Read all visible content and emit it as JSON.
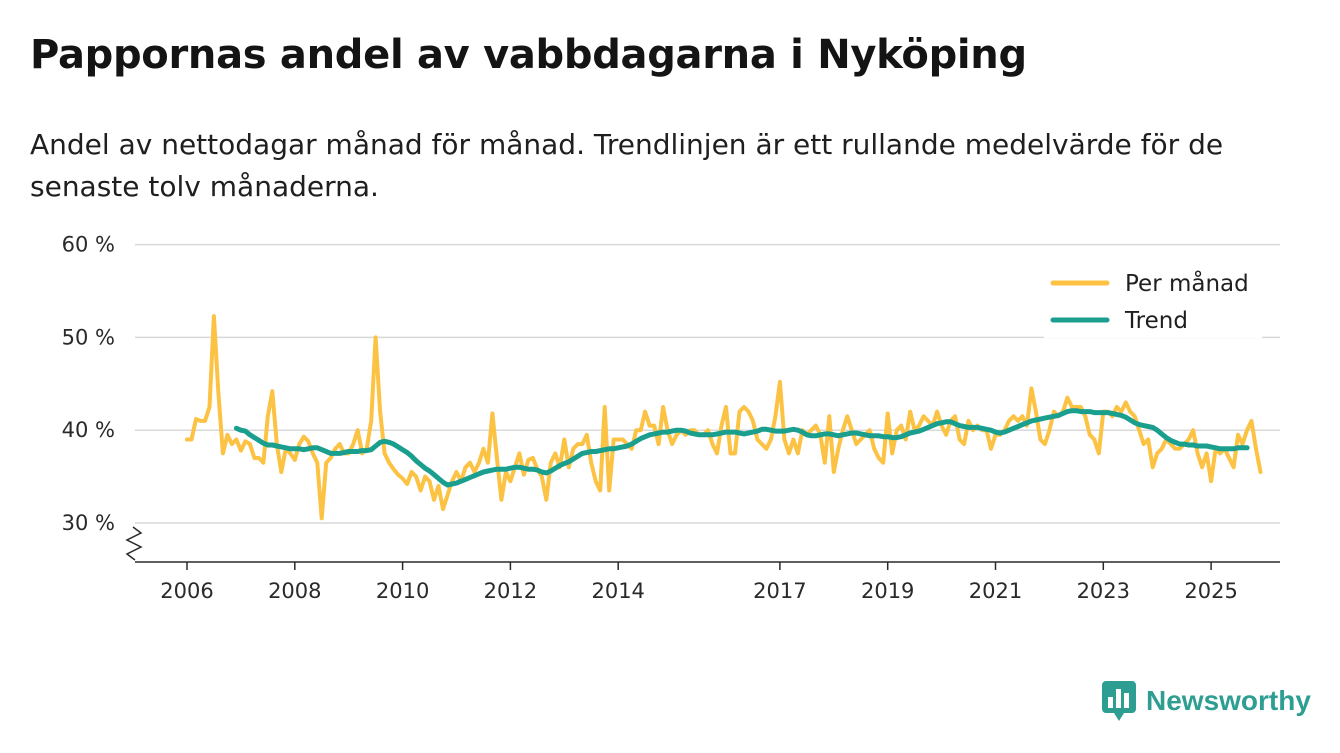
{
  "title": "Pappornas andel av vabbdagarna i Nyköping",
  "subtitle": "Andel av nettodagar månad för månad. Trendlinjen är ett rullande medelvärde för de senaste tolv månaderna.",
  "brand": {
    "name": "Newsworthy",
    "color": "#2e9e93"
  },
  "chart_data": {
    "type": "line",
    "ylim": [
      30,
      60
    ],
    "y_ticks": [
      {
        "value": 30,
        "label": "30 %"
      },
      {
        "value": 40,
        "label": "40 %"
      },
      {
        "value": 50,
        "label": "50 %"
      },
      {
        "value": 60,
        "label": "60 %"
      }
    ],
    "xlim": [
      2006,
      2027.2
    ],
    "x_ticks": [
      {
        "value": 2006,
        "label": "2006"
      },
      {
        "value": 2008,
        "label": "2008"
      },
      {
        "value": 2010,
        "label": "2010"
      },
      {
        "value": 2012,
        "label": "2012"
      },
      {
        "value": 2014,
        "label": "2014"
      },
      {
        "value": 2017,
        "label": "2017"
      },
      {
        "value": 2019,
        "label": "2019"
      },
      {
        "value": 2021,
        "label": "2021"
      },
      {
        "value": 2023,
        "label": "2023"
      },
      {
        "value": 2025,
        "label": "2025"
      }
    ],
    "legend": {
      "position": "top-right"
    },
    "series": [
      {
        "name": "Per månad",
        "color": "#fcc243",
        "start": 2006.0,
        "step": 0.0833333,
        "values": [
          39,
          39,
          41.2,
          41,
          41,
          42.5,
          52.3,
          44,
          37.5,
          39.5,
          38.5,
          39,
          37.8,
          38.8,
          38.5,
          37,
          37,
          36.5,
          41.5,
          44.2,
          38.5,
          35.5,
          38,
          37.5,
          36.8,
          38.5,
          39.3,
          38.8,
          37.5,
          36.5,
          30.5,
          36.5,
          37,
          38,
          38.5,
          37.5,
          37.5,
          38.5,
          40,
          37.5,
          38,
          41,
          50,
          42,
          37.5,
          36.5,
          35.8,
          35.2,
          34.8,
          34.2,
          35.5,
          35,
          33.5,
          35,
          34.5,
          32.5,
          34,
          31.5,
          33,
          34.5,
          35.5,
          34.5,
          36,
          36.5,
          35.5,
          36.5,
          38,
          36.5,
          41.8,
          37,
          32.5,
          35.5,
          34.5,
          36,
          37.5,
          35.2,
          36.8,
          37,
          35.8,
          35,
          32.5,
          36.5,
          37.5,
          36,
          39,
          36,
          38,
          38.5,
          38.5,
          39.5,
          36.5,
          34.5,
          33.5,
          42.5,
          33.5,
          39,
          39,
          39,
          38.5,
          38,
          40,
          40,
          42,
          40.5,
          40.5,
          38.5,
          42.5,
          40,
          38.5,
          39.5,
          40,
          39.5,
          40,
          40,
          39.5,
          39.5,
          40,
          38.5,
          37.5,
          40.5,
          42.5,
          37.5,
          37.5,
          42,
          42.5,
          42,
          41,
          39,
          38.5,
          38,
          39,
          41.5,
          45.2,
          39,
          37.5,
          39,
          37.5,
          40,
          39.5,
          40,
          40.5,
          39.5,
          36.5,
          41.5,
          35.5,
          38,
          40,
          41.5,
          40,
          38.5,
          39,
          39.5,
          40,
          38,
          37,
          36.5,
          41.8,
          37.5,
          40,
          40.5,
          39,
          42,
          40,
          40.5,
          41.5,
          41,
          40.5,
          42,
          40.5,
          39.5,
          41,
          41.5,
          39,
          38.5,
          41,
          40,
          40.5,
          40,
          40,
          38,
          39.5,
          39.5,
          40,
          41,
          41.5,
          41,
          41.5,
          40.5,
          44.5,
          42,
          39,
          38.5,
          40,
          42,
          41.5,
          42,
          43.5,
          42.5,
          42.5,
          42.5,
          41.5,
          39.5,
          39,
          37.5,
          42,
          42,
          41.5,
          42.5,
          42,
          43,
          42,
          41.5,
          40,
          38.5,
          39,
          36,
          37.5,
          38,
          39,
          38.5,
          38,
          38,
          38.5,
          39,
          40,
          37.5,
          36,
          37.5,
          34.5,
          38,
          37.5,
          38,
          37,
          36,
          39.5,
          38.5,
          40,
          41,
          38,
          35.5
        ]
      },
      {
        "name": "Trend",
        "color": "#1a9e8e",
        "start": 2006.917,
        "step": 0.0833333,
        "values": [
          40.2,
          40,
          39.9,
          39.5,
          39.2,
          38.9,
          38.6,
          38.4,
          38.4,
          38.3,
          38.2,
          38.1,
          38,
          38,
          38,
          37.9,
          38,
          38.1,
          38.1,
          37.9,
          37.7,
          37.5,
          37.5,
          37.5,
          37.6,
          37.7,
          37.7,
          37.7,
          37.8,
          37.8,
          37.9,
          38.3,
          38.7,
          38.8,
          38.7,
          38.5,
          38.2,
          37.9,
          37.6,
          37.2,
          36.7,
          36.3,
          35.9,
          35.6,
          35.2,
          34.8,
          34.4,
          34.1,
          34.2,
          34.3,
          34.5,
          34.7,
          34.9,
          35.1,
          35.3,
          35.5,
          35.6,
          35.7,
          35.8,
          35.8,
          35.8,
          35.9,
          36,
          36,
          35.9,
          35.8,
          35.8,
          35.7,
          35.5,
          35.4,
          35.6,
          35.9,
          36.2,
          36.4,
          36.6,
          36.9,
          37.2,
          37.5,
          37.6,
          37.7,
          37.7,
          37.8,
          37.9,
          38,
          38,
          38.1,
          38.2,
          38.3,
          38.5,
          38.8,
          39.1,
          39.3,
          39.5,
          39.6,
          39.7,
          39.8,
          39.8,
          39.9,
          40,
          40,
          39.9,
          39.7,
          39.6,
          39.5,
          39.5,
          39.5,
          39.5,
          39.6,
          39.7,
          39.8,
          39.8,
          39.8,
          39.7,
          39.6,
          39.7,
          39.8,
          39.9,
          40.1,
          40.1,
          40,
          39.9,
          39.9,
          39.9,
          40,
          40.1,
          40,
          39.8,
          39.5,
          39.4,
          39.4,
          39.5,
          39.6,
          39.6,
          39.5,
          39.4,
          39.5,
          39.6,
          39.7,
          39.7,
          39.6,
          39.5,
          39.4,
          39.4,
          39.4,
          39.3,
          39.3,
          39.2,
          39.2,
          39.3,
          39.5,
          39.7,
          39.8,
          39.9,
          40.1,
          40.3,
          40.5,
          40.7,
          40.8,
          40.9,
          40.9,
          40.7,
          40.5,
          40.4,
          40.3,
          40.3,
          40.3,
          40.2,
          40.1,
          40,
          39.8,
          39.7,
          39.8,
          40,
          40.2,
          40.4,
          40.6,
          40.8,
          41,
          41.1,
          41.2,
          41.3,
          41.4,
          41.5,
          41.6,
          41.8,
          42,
          42.1,
          42.1,
          42,
          42,
          42,
          41.9,
          41.9,
          41.9,
          41.9,
          41.8,
          41.7,
          41.6,
          41.4,
          41.1,
          40.8,
          40.6,
          40.5,
          40.4,
          40.3,
          40,
          39.6,
          39.2,
          38.9,
          38.7,
          38.5,
          38.5,
          38.4,
          38.4,
          38.3,
          38.3,
          38.3,
          38.2,
          38.1,
          38,
          38,
          38,
          38,
          38.1,
          38.1,
          38.1
        ]
      }
    ]
  }
}
